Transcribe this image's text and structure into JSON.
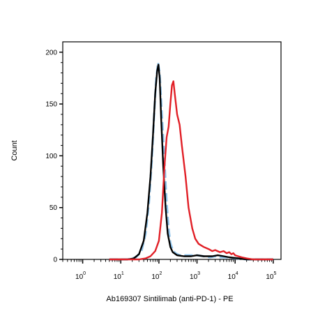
{
  "chart_data": {
    "type": "line",
    "title": "",
    "xlabel": "Ab169307 Sintilimab (anti-PD-1) - PE",
    "ylabel": "Count",
    "x_scale": "log",
    "xlim": [
      0.3,
      160000
    ],
    "ylim": [
      0,
      210
    ],
    "grid": false,
    "legend": "none",
    "yticks": [
      {
        "value": 0,
        "label": "0"
      },
      {
        "value": 50,
        "label": "50"
      },
      {
        "value": 100,
        "label": "100"
      },
      {
        "value": 150,
        "label": "150"
      },
      {
        "value": 200,
        "label": "200"
      }
    ],
    "xticks": [
      {
        "value": 1,
        "base": "10",
        "exp": "0"
      },
      {
        "value": 10,
        "base": "10",
        "exp": "1"
      },
      {
        "value": 100,
        "base": "10",
        "exp": "2"
      },
      {
        "value": 1000,
        "base": "10",
        "exp": "3"
      },
      {
        "value": 10000,
        "base": "10",
        "exp": "4"
      },
      {
        "value": 100000,
        "base": "10",
        "exp": "5"
      }
    ],
    "series": [
      {
        "color": "#8ec3ea",
        "dash": true,
        "points": [
          [
            5,
            0
          ],
          [
            15,
            0
          ],
          [
            25,
            2
          ],
          [
            35,
            8
          ],
          [
            45,
            25
          ],
          [
            55,
            55
          ],
          [
            65,
            95
          ],
          [
            75,
            140
          ],
          [
            85,
            175
          ],
          [
            95,
            190
          ],
          [
            105,
            180
          ],
          [
            120,
            140
          ],
          [
            140,
            95
          ],
          [
            160,
            55
          ],
          [
            180,
            30
          ],
          [
            200,
            16
          ],
          [
            230,
            9
          ],
          [
            270,
            6
          ],
          [
            350,
            4
          ],
          [
            500,
            4
          ],
          [
            700,
            4
          ],
          [
            1000,
            4
          ],
          [
            1500,
            3
          ],
          [
            2200,
            2
          ],
          [
            3000,
            3
          ],
          [
            4000,
            2
          ],
          [
            6000,
            2
          ],
          [
            10000,
            1
          ],
          [
            20000,
            0
          ],
          [
            100000,
            0
          ]
        ]
      },
      {
        "color": "#000000",
        "dash": false,
        "points": [
          [
            5,
            0
          ],
          [
            15,
            0
          ],
          [
            22,
            1
          ],
          [
            30,
            5
          ],
          [
            40,
            18
          ],
          [
            50,
            45
          ],
          [
            60,
            80
          ],
          [
            70,
            120
          ],
          [
            80,
            160
          ],
          [
            90,
            182
          ],
          [
            97,
            188
          ],
          [
            105,
            175
          ],
          [
            115,
            135
          ],
          [
            130,
            90
          ],
          [
            150,
            50
          ],
          [
            170,
            25
          ],
          [
            200,
            12
          ],
          [
            230,
            7
          ],
          [
            300,
            4
          ],
          [
            450,
            3
          ],
          [
            700,
            3
          ],
          [
            1000,
            4
          ],
          [
            1500,
            3
          ],
          [
            2500,
            3
          ],
          [
            3500,
            4
          ],
          [
            5000,
            3
          ],
          [
            7000,
            2
          ],
          [
            12000,
            1
          ],
          [
            20000,
            0
          ],
          [
            100000,
            0
          ]
        ]
      },
      {
        "color": "#e11f26",
        "dash": false,
        "points": [
          [
            5,
            0
          ],
          [
            30,
            0
          ],
          [
            45,
            1
          ],
          [
            60,
            3
          ],
          [
            80,
            8
          ],
          [
            100,
            18
          ],
          [
            120,
            45
          ],
          [
            140,
            90
          ],
          [
            160,
            118
          ],
          [
            180,
            128
          ],
          [
            200,
            150
          ],
          [
            220,
            168
          ],
          [
            240,
            172
          ],
          [
            260,
            160
          ],
          [
            300,
            140
          ],
          [
            350,
            130
          ],
          [
            400,
            110
          ],
          [
            500,
            80
          ],
          [
            600,
            50
          ],
          [
            750,
            30
          ],
          [
            900,
            20
          ],
          [
            1100,
            15
          ],
          [
            1500,
            12
          ],
          [
            2000,
            10
          ],
          [
            2500,
            8
          ],
          [
            3000,
            9
          ],
          [
            4000,
            7
          ],
          [
            5000,
            8
          ],
          [
            6000,
            6
          ],
          [
            7000,
            7
          ],
          [
            8000,
            5
          ],
          [
            9000,
            6
          ],
          [
            10000,
            4
          ],
          [
            12000,
            3
          ],
          [
            15000,
            2
          ],
          [
            20000,
            1
          ],
          [
            30000,
            0
          ],
          [
            100000,
            0
          ]
        ]
      }
    ]
  }
}
